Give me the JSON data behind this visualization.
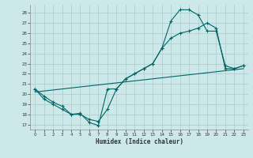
{
  "title": "",
  "xlabel": "Humidex (Indice chaleur)",
  "bg_color": "#cce8e8",
  "grid_color": "#aacccc",
  "line_color": "#006666",
  "xlim": [
    -0.5,
    23.5
  ],
  "ylim": [
    16.5,
    28.8
  ],
  "xticks": [
    0,
    1,
    2,
    3,
    4,
    5,
    6,
    7,
    8,
    9,
    10,
    11,
    12,
    13,
    14,
    15,
    16,
    17,
    18,
    19,
    20,
    21,
    22,
    23
  ],
  "yticks": [
    17,
    18,
    19,
    20,
    21,
    22,
    23,
    24,
    25,
    26,
    27,
    28
  ],
  "line1_x": [
    0,
    1,
    2,
    3,
    4,
    5,
    6,
    7,
    8,
    9,
    10,
    11,
    12,
    13,
    14,
    15,
    16,
    17,
    18,
    19,
    20,
    21,
    22,
    23
  ],
  "line1_y": [
    20.5,
    19.8,
    19.2,
    18.8,
    18.0,
    18.1,
    17.2,
    16.9,
    20.5,
    20.5,
    21.5,
    22.0,
    22.5,
    23.0,
    24.5,
    27.2,
    28.3,
    28.3,
    27.8,
    26.2,
    26.2,
    22.8,
    22.5,
    22.8
  ],
  "line2_x": [
    0,
    1,
    2,
    3,
    4,
    5,
    6,
    7,
    8,
    9,
    10,
    11,
    12,
    13,
    14,
    15,
    16,
    17,
    18,
    19,
    20,
    21,
    22,
    23
  ],
  "line2_y": [
    20.5,
    19.5,
    19.0,
    18.5,
    18.0,
    18.0,
    17.5,
    17.3,
    18.5,
    20.5,
    21.5,
    22.0,
    22.5,
    23.0,
    24.5,
    25.5,
    26.0,
    26.2,
    26.5,
    27.0,
    26.5,
    22.5,
    22.5,
    22.8
  ],
  "line3_x": [
    0,
    23
  ],
  "line3_y": [
    20.2,
    22.5
  ]
}
